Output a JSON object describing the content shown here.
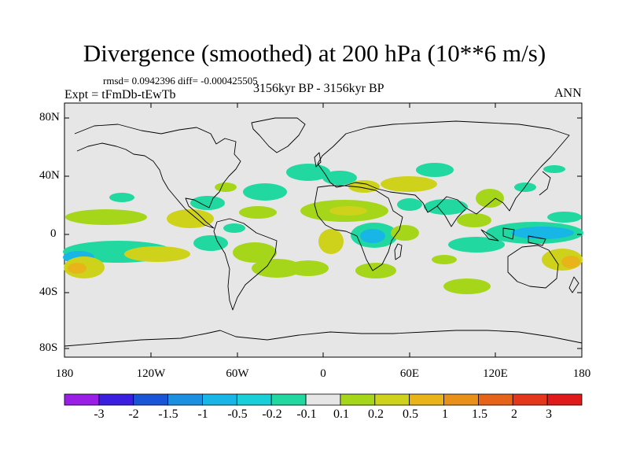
{
  "title": "Divergence (smoothed) at 200 hPa (10**6 m/s)",
  "stats_line": "rmsd= 0.0942396  diff= -0.000425505",
  "experiment": "Expt = tFmDb-tEwTb",
  "period": "3156kyr BP - 3156kyr BP",
  "season": "ANN",
  "lat_labels": [
    "80N",
    "40N",
    "0",
    "40S",
    "80S"
  ],
  "lon_labels": [
    "180",
    "120W",
    "60W",
    "0",
    "60E",
    "120E",
    "180"
  ],
  "colorbar": {
    "labels": [
      "-3",
      "-2",
      "-1.5",
      "-1",
      "-0.5",
      "-0.2",
      "-0.1",
      "0.1",
      "0.2",
      "0.5",
      "1",
      "1.5",
      "2",
      "3"
    ],
    "colors": [
      "#9a1fe6",
      "#3b1fe0",
      "#1a55d8",
      "#1d8fe0",
      "#18b6e6",
      "#19d0d8",
      "#20d8a0",
      "#e6e6e6",
      "#a6d61a",
      "#cfd21a",
      "#e8b41a",
      "#e8901a",
      "#e6641a",
      "#e3361a",
      "#e01a1a"
    ]
  },
  "colors": {
    "background": "#e6e6e6",
    "coast": "#000000"
  }
}
